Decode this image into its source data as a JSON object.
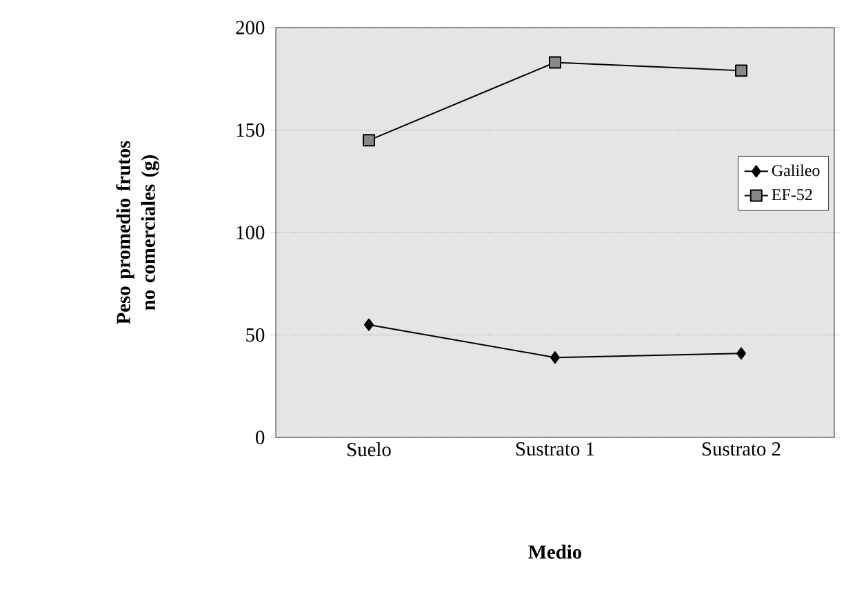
{
  "chart_data": {
    "type": "line",
    "xlabel": "Medio",
    "ylabel": "Peso promedio frutos no comerciales (g)",
    "categories": [
      "Suelo",
      "Sustrato 1",
      "Sustrato 2"
    ],
    "series": [
      {
        "name": "Galileo",
        "color": "#000000",
        "marker": "diamond",
        "values": [
          55,
          39,
          41
        ]
      },
      {
        "name": "EF-52",
        "color": "#888888",
        "marker": "square",
        "values": [
          145,
          183,
          179
        ]
      }
    ],
    "ylim": [
      0,
      200
    ],
    "yticks": [
      0,
      50,
      100,
      150,
      200
    ],
    "grid": "y",
    "legend": "right"
  }
}
